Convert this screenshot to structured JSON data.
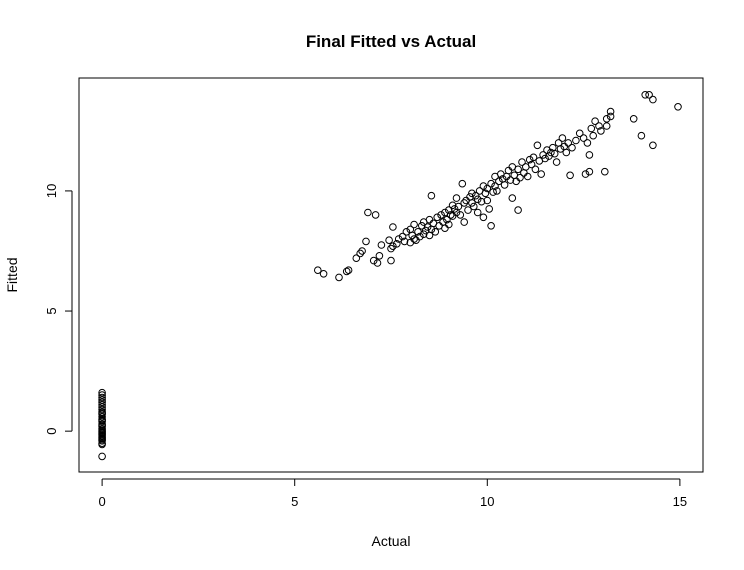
{
  "chart_data": {
    "type": "scatter",
    "title": "Final Fitted vs Actual",
    "xlabel": "Actual",
    "ylabel": "Fitted",
    "xlim": [
      -0.6,
      15.6
    ],
    "ylim": [
      -1.7,
      14.7
    ],
    "xticks": [
      0,
      5,
      10,
      15
    ],
    "xtick_labels": [
      "0",
      "5",
      "10",
      "15"
    ],
    "yticks": [
      0,
      5,
      10
    ],
    "ytick_labels": [
      "0",
      "5",
      "10"
    ],
    "grid": false,
    "legend": "none",
    "marker": "open-circle",
    "series": [
      {
        "points": [
          [
            0,
            1.6
          ],
          [
            0,
            1.5
          ],
          [
            0,
            1.4
          ],
          [
            0,
            1.3
          ],
          [
            0,
            1.2
          ],
          [
            0,
            1.1
          ],
          [
            0,
            1.0
          ],
          [
            0,
            0.9
          ],
          [
            0,
            0.8
          ],
          [
            0,
            0.75
          ],
          [
            0,
            0.7
          ],
          [
            0,
            0.6
          ],
          [
            0,
            0.5
          ],
          [
            0,
            0.45
          ],
          [
            0,
            0.4
          ],
          [
            0,
            0.3
          ],
          [
            0,
            0.25
          ],
          [
            0,
            0.2
          ],
          [
            0,
            0.1
          ],
          [
            0,
            0.05
          ],
          [
            0,
            0.0
          ],
          [
            0,
            -0.05
          ],
          [
            0,
            -0.1
          ],
          [
            0,
            -0.15
          ],
          [
            0,
            -0.2
          ],
          [
            0,
            -0.25
          ],
          [
            0,
            -0.3
          ],
          [
            0,
            -0.35
          ],
          [
            0,
            -0.4
          ],
          [
            0,
            -0.5
          ],
          [
            0,
            -0.55
          ],
          [
            0,
            -1.05
          ],
          [
            5.6,
            6.7
          ],
          [
            5.75,
            6.55
          ],
          [
            6.15,
            6.4
          ],
          [
            6.35,
            6.65
          ],
          [
            6.4,
            6.7
          ],
          [
            6.6,
            7.2
          ],
          [
            6.7,
            7.4
          ],
          [
            6.75,
            7.5
          ],
          [
            6.85,
            7.9
          ],
          [
            6.9,
            9.1
          ],
          [
            7.05,
            7.1
          ],
          [
            7.1,
            9.0
          ],
          [
            7.15,
            7.0
          ],
          [
            7.2,
            7.3
          ],
          [
            7.25,
            7.75
          ],
          [
            7.45,
            7.95
          ],
          [
            7.5,
            7.1
          ],
          [
            7.5,
            7.6
          ],
          [
            7.55,
            7.7
          ],
          [
            7.55,
            8.5
          ],
          [
            7.65,
            7.8
          ],
          [
            7.7,
            8.0
          ],
          [
            7.8,
            8.1
          ],
          [
            7.85,
            7.9
          ],
          [
            7.9,
            8.3
          ],
          [
            8.0,
            7.85
          ],
          [
            8.0,
            8.4
          ],
          [
            8.05,
            8.15
          ],
          [
            8.1,
            8.0
          ],
          [
            8.1,
            8.6
          ],
          [
            8.15,
            7.95
          ],
          [
            8.2,
            8.3
          ],
          [
            8.25,
            8.1
          ],
          [
            8.3,
            8.55
          ],
          [
            8.35,
            8.2
          ],
          [
            8.35,
            8.7
          ],
          [
            8.4,
            8.35
          ],
          [
            8.45,
            8.5
          ],
          [
            8.5,
            8.15
          ],
          [
            8.5,
            8.8
          ],
          [
            8.55,
            8.4
          ],
          [
            8.55,
            9.8
          ],
          [
            8.6,
            8.65
          ],
          [
            8.65,
            8.3
          ],
          [
            8.7,
            8.9
          ],
          [
            8.75,
            8.55
          ],
          [
            8.8,
            9.0
          ],
          [
            8.85,
            8.7
          ],
          [
            8.9,
            9.1
          ],
          [
            8.9,
            8.45
          ],
          [
            8.95,
            8.8
          ],
          [
            9.0,
            9.2
          ],
          [
            9.0,
            8.6
          ],
          [
            9.05,
            9.0
          ],
          [
            9.1,
            9.4
          ],
          [
            9.1,
            8.95
          ],
          [
            9.15,
            9.25
          ],
          [
            9.2,
            9.7
          ],
          [
            9.2,
            9.1
          ],
          [
            9.25,
            9.35
          ],
          [
            9.3,
            9.0
          ],
          [
            9.35,
            10.3
          ],
          [
            9.4,
            9.5
          ],
          [
            9.4,
            8.7
          ],
          [
            9.45,
            9.6
          ],
          [
            9.5,
            9.2
          ],
          [
            9.55,
            9.75
          ],
          [
            9.6,
            9.5
          ],
          [
            9.6,
            9.9
          ],
          [
            9.65,
            9.35
          ],
          [
            9.7,
            9.8
          ],
          [
            9.75,
            9.65
          ],
          [
            9.75,
            9.1
          ],
          [
            9.8,
            10.0
          ],
          [
            9.85,
            9.55
          ],
          [
            9.9,
            10.2
          ],
          [
            9.9,
            8.9
          ],
          [
            9.95,
            9.9
          ],
          [
            10.0,
            10.1
          ],
          [
            10.0,
            9.6
          ],
          [
            10.05,
            9.25
          ],
          [
            10.1,
            10.3
          ],
          [
            10.1,
            8.55
          ],
          [
            10.15,
            9.95
          ],
          [
            10.2,
            10.6
          ],
          [
            10.2,
            10.2
          ],
          [
            10.25,
            10.0
          ],
          [
            10.3,
            10.4
          ],
          [
            10.35,
            10.7
          ],
          [
            10.4,
            10.5
          ],
          [
            10.45,
            10.25
          ],
          [
            10.5,
            10.6
          ],
          [
            10.55,
            10.85
          ],
          [
            10.6,
            10.45
          ],
          [
            10.65,
            11.0
          ],
          [
            10.65,
            9.7
          ],
          [
            10.7,
            10.65
          ],
          [
            10.75,
            10.4
          ],
          [
            10.8,
            10.9
          ],
          [
            10.8,
            9.2
          ],
          [
            10.85,
            10.55
          ],
          [
            10.9,
            11.2
          ],
          [
            10.95,
            10.75
          ],
          [
            11.0,
            11.0
          ],
          [
            11.05,
            10.6
          ],
          [
            11.1,
            11.3
          ],
          [
            11.15,
            11.1
          ],
          [
            11.2,
            11.4
          ],
          [
            11.25,
            10.9
          ],
          [
            11.3,
            11.9
          ],
          [
            11.35,
            11.25
          ],
          [
            11.4,
            10.7
          ],
          [
            11.45,
            11.5
          ],
          [
            11.5,
            11.35
          ],
          [
            11.55,
            11.7
          ],
          [
            11.6,
            11.45
          ],
          [
            11.65,
            11.6
          ],
          [
            11.7,
            11.8
          ],
          [
            11.75,
            11.55
          ],
          [
            11.8,
            11.2
          ],
          [
            11.85,
            12.0
          ],
          [
            11.9,
            11.75
          ],
          [
            11.95,
            12.2
          ],
          [
            12.0,
            11.85
          ],
          [
            12.05,
            11.6
          ],
          [
            12.1,
            12.0
          ],
          [
            12.15,
            10.65
          ],
          [
            12.2,
            11.8
          ],
          [
            12.3,
            12.1
          ],
          [
            12.4,
            12.4
          ],
          [
            12.5,
            12.2
          ],
          [
            12.55,
            10.7
          ],
          [
            12.6,
            12.0
          ],
          [
            12.65,
            11.5
          ],
          [
            12.65,
            10.8
          ],
          [
            12.7,
            12.6
          ],
          [
            12.75,
            12.3
          ],
          [
            12.8,
            12.9
          ],
          [
            12.9,
            12.7
          ],
          [
            12.95,
            12.5
          ],
          [
            13.05,
            10.8
          ],
          [
            13.1,
            12.7
          ],
          [
            13.1,
            13.0
          ],
          [
            13.2,
            13.3
          ],
          [
            13.2,
            13.1
          ],
          [
            13.8,
            13.0
          ],
          [
            14.0,
            12.3
          ],
          [
            14.1,
            14.0
          ],
          [
            14.2,
            14.0
          ],
          [
            14.3,
            11.9
          ],
          [
            14.3,
            13.8
          ],
          [
            14.95,
            13.5
          ]
        ]
      }
    ]
  }
}
